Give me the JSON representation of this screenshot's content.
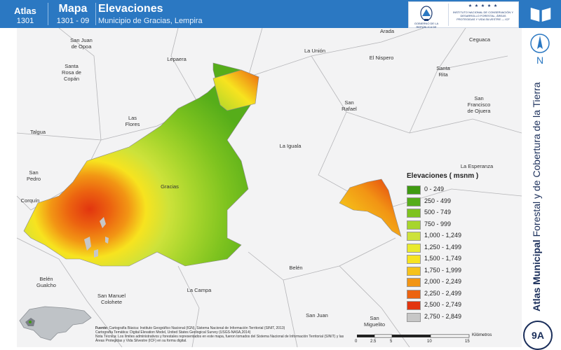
{
  "header": {
    "atlas_label": "Atlas",
    "atlas_number": "1301",
    "mapa_label": "Mapa",
    "mapa_number": "1301 - 09",
    "title": "Elevaciones",
    "subtitle": "Municipio de Gracias, Lempira",
    "logo_left_text": "GOBIERNO DE LA REPÚBLICA DE HONDURAS",
    "logo_right_text": "INSTITUTO NACIONAL DE CONSERVACIÓN Y DESARROLLO FORESTAL, ÁREAS PROTEGIDAS Y VIDA SILVESTRE — ICF"
  },
  "side": {
    "title_bold": "Atlas Municipal",
    "title_rest": " Forestal y de Cobertura de la Tierra",
    "north_letter": "N",
    "badge": "9A"
  },
  "places": [
    {
      "name": "San Juan\nde Opoa"
    },
    {
      "name": "Lepaera"
    },
    {
      "name": "Santa\nRosa de\nCopán"
    },
    {
      "name": "La Unión"
    },
    {
      "name": "El Nispero"
    },
    {
      "name": "Arada"
    },
    {
      "name": "Ceguaca"
    },
    {
      "name": "Santa\nRita"
    },
    {
      "name": "San\nRafael"
    },
    {
      "name": "San\nFrancisco\nde Ojuera"
    },
    {
      "name": "Las\nFlores"
    },
    {
      "name": "Talgua"
    },
    {
      "name": "La Iguala"
    },
    {
      "name": "La Esperanza"
    },
    {
      "name": "San\nPedro"
    },
    {
      "name": "Gracias"
    },
    {
      "name": "Corquín"
    },
    {
      "name": "Belén"
    },
    {
      "name": "Belén\nGualcho"
    },
    {
      "name": "San Manuel\nColohete"
    },
    {
      "name": "La Campa"
    },
    {
      "name": "San Juan"
    },
    {
      "name": "San\nMiguelito"
    }
  ],
  "legend": {
    "title": "Elevaciones ( msnm )",
    "items": [
      {
        "label": "0 - 249",
        "color": "#3f9a12"
      },
      {
        "label": "250 - 499",
        "color": "#56ad1a"
      },
      {
        "label": "500 - 749",
        "color": "#7ec31f"
      },
      {
        "label": "750 - 999",
        "color": "#a7d52c"
      },
      {
        "label": "1,000 - 1,249",
        "color": "#cde23a"
      },
      {
        "label": "1,250 - 1,499",
        "color": "#e9ea2e"
      },
      {
        "label": "1,500 - 1,749",
        "color": "#f7e31f"
      },
      {
        "label": "1,750 - 1,999",
        "color": "#f6c21a"
      },
      {
        "label": "2,000 - 2,249",
        "color": "#f29514"
      },
      {
        "label": "2,250 - 2,499",
        "color": "#ec6310"
      },
      {
        "label": "2,500 - 2,749",
        "color": "#e2350f"
      },
      {
        "label": "2,750 - 2,849",
        "color": "#c7c7c7"
      }
    ]
  },
  "source": {
    "label": "Fuente:",
    "line1": "Cartografía Básica: Instituto Geográfico Nacional (IGN), Sistema Nacional de Información Territorial (SINIT, 2013)",
    "line2": "Cartografía Temática: Digital Elevation Model, United States Geological Survey (USGS-NASA,2014)",
    "note": "Nota Técnica: Los límites administrativos y forestales representados en este mapa, fueron tomados del Sistema Nacional de Información Territorial (SINIT) y las Áreas Protegidas y Vida Silvestre (ICF) en su forma digital."
  },
  "scale": {
    "ticks": [
      "0",
      "2.5",
      "5",
      "10",
      "15"
    ],
    "unit": "Kilómetros"
  }
}
